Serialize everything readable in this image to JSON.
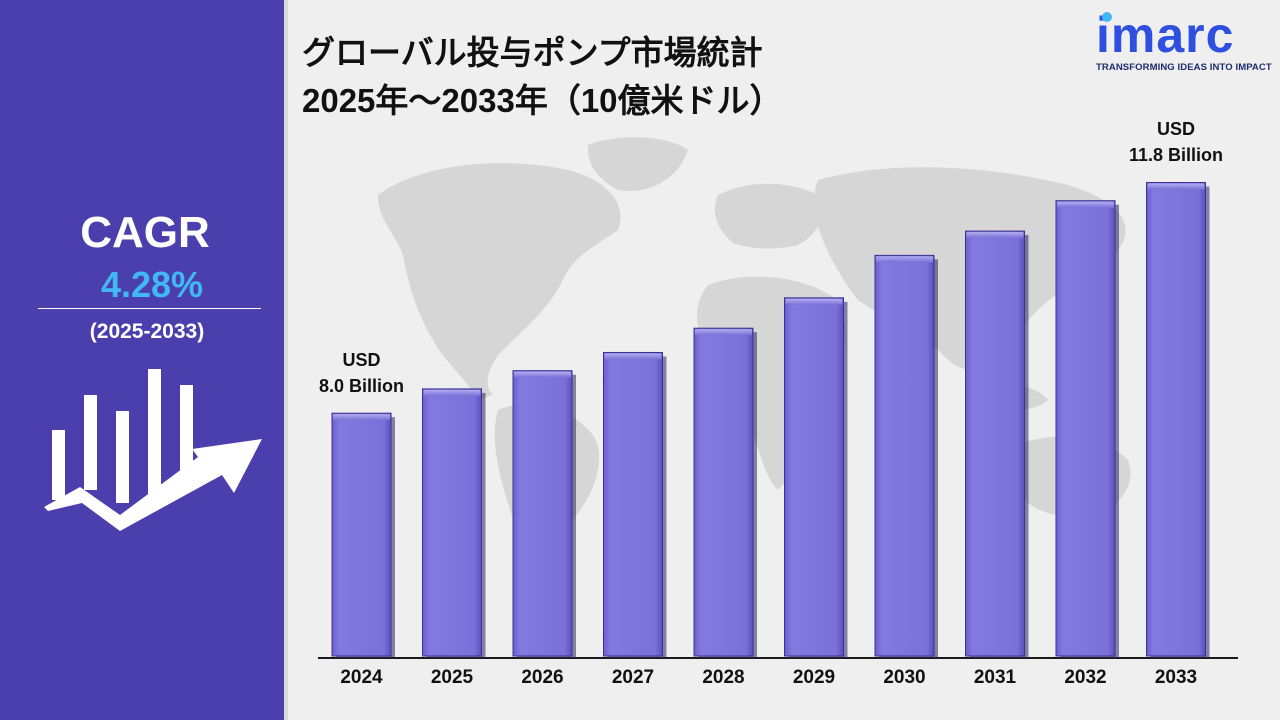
{
  "sidebar": {
    "cagr_label": "CAGR",
    "cagr_value": "4.28%",
    "period": "(2025-2033)"
  },
  "header": {
    "title_line1": "グローバル投与ポンプ市場統計",
    "title_line2": "2025年～2033年（10億米ドル）"
  },
  "logo": {
    "word": "imarc",
    "tagline": "TRANSFORMING IDEAS INTO IMPACT"
  },
  "colors": {
    "sidebar": "#4b3fae",
    "bar": "#7b71d8",
    "cagr_value": "#41b8f4",
    "logo": "#2e4fe0"
  },
  "chart_data": {
    "type": "bar",
    "categories": [
      "2024",
      "2025",
      "2026",
      "2027",
      "2028",
      "2029",
      "2030",
      "2031",
      "2032",
      "2033"
    ],
    "values": [
      8.0,
      8.4,
      8.7,
      9.0,
      9.4,
      9.9,
      10.6,
      11.0,
      11.5,
      11.8
    ],
    "annotations": [
      {
        "category": "2024",
        "line1": "USD",
        "line2": "8.0 Billion"
      },
      {
        "category": "2033",
        "line1": "USD",
        "line2": "11.8 Billion"
      }
    ],
    "ylim": [
      4.0,
      12.5
    ],
    "grid": false,
    "legend": "none"
  }
}
